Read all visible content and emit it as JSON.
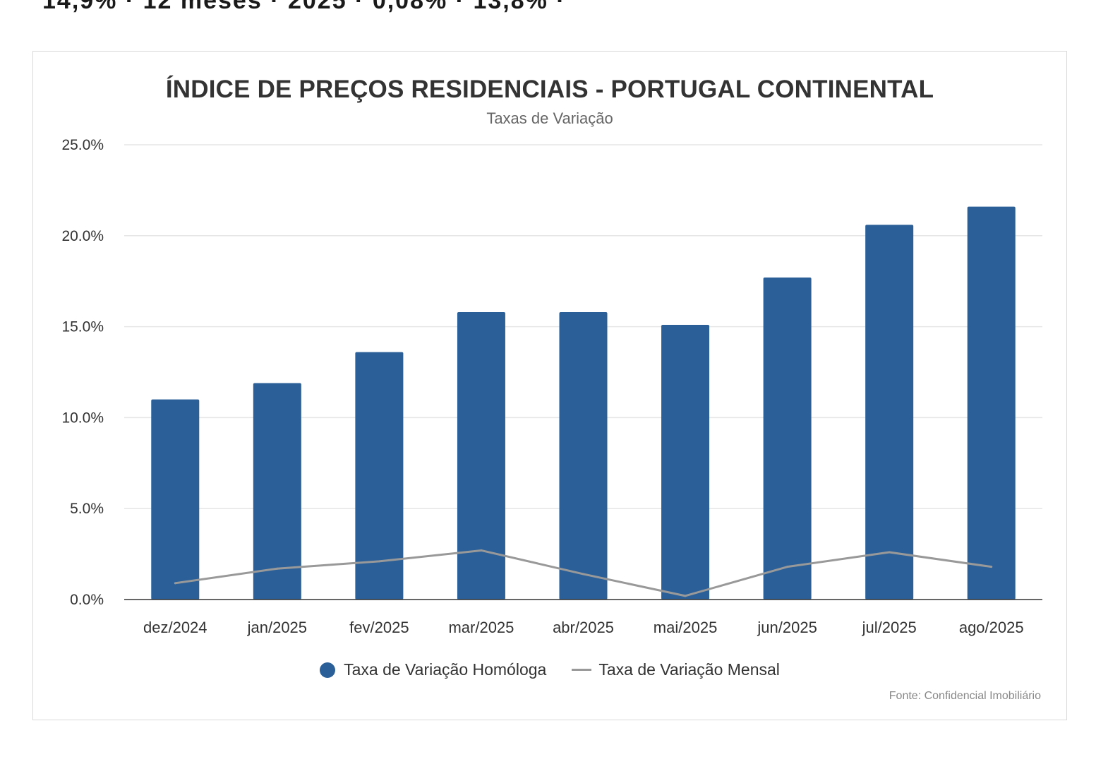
{
  "page": {
    "top_strip_text": "14,9% · 12 meses · 2025 · 0,08% · 13,8% ·"
  },
  "chart_data": {
    "type": "bar",
    "title": "ÍNDICE DE PREÇOS RESIDENCIAIS - PORTUGAL CONTINENTAL",
    "subtitle": "Taxas de Variação",
    "categories": [
      "dez/2024",
      "jan/2025",
      "fev/2025",
      "mar/2025",
      "abr/2025",
      "mai/2025",
      "jun/2025",
      "jul/2025",
      "ago/2025"
    ],
    "series": [
      {
        "name": "Taxa de Variação Homóloga",
        "type": "bar",
        "color": "#2a5f98",
        "values": [
          11.0,
          11.9,
          13.6,
          15.8,
          15.8,
          15.1,
          17.7,
          20.6,
          21.6
        ]
      },
      {
        "name": "Taxa de Variação Mensal",
        "type": "line",
        "color": "#999999",
        "values": [
          0.9,
          1.7,
          2.1,
          2.7,
          1.4,
          0.2,
          1.8,
          2.6,
          1.8
        ]
      }
    ],
    "yticks": [
      "0.0%",
      "5.0%",
      "10.0%",
      "15.0%",
      "20.0%",
      "25.0%"
    ],
    "ylim": [
      0,
      25
    ],
    "grid": true,
    "legend": "bottom-center",
    "source": "Fonte: Confidencial Imobiliário"
  }
}
